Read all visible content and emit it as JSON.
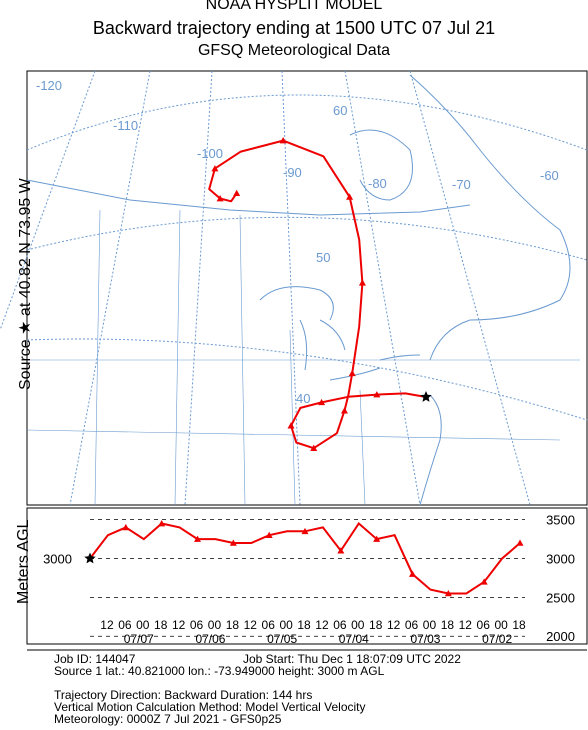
{
  "header": {
    "line1": "NOAA HYSPLIT MODEL",
    "line2": "Backward trajectory ending at 1500 UTC 07 Jul 21",
    "line3": "GFSQ Meteorological Data"
  },
  "map": {
    "source_label": "Source ★ at   40.82 N   73.95 W",
    "lon_labels": [
      "-120",
      "-110",
      "-100",
      "-90",
      "-80",
      "-70",
      "-60"
    ],
    "lat_labels": [
      "60",
      "50",
      "40"
    ]
  },
  "height_panel": {
    "axis_label": "Meters AGL",
    "source_height": "3000"
  },
  "chart_data": {
    "type": "line",
    "title": "Backward trajectory ending at 1500 UTC 07 Jul 21",
    "ylabel": "Meters AGL",
    "yticks": [
      2000,
      2500,
      3000,
      3500
    ],
    "ylim": [
      1900,
      3650
    ],
    "x_hour_ticks": [
      "12",
      "06",
      "00",
      "18",
      "12",
      "06",
      "00",
      "18",
      "12",
      "06",
      "00",
      "18",
      "12",
      "06",
      "00",
      "18",
      "12",
      "06",
      "00",
      "18",
      "12",
      "06",
      "00",
      "18"
    ],
    "x_date_labels": [
      "07/07",
      "07/06",
      "07/05",
      "07/04",
      "07/03",
      "07/02"
    ],
    "x_hours_back_range": [
      0,
      144
    ],
    "series": [
      {
        "color": "#ee0000",
        "hours_back": [
          0,
          6,
          12,
          18,
          24,
          30,
          36,
          42,
          48,
          54,
          60,
          66,
          72,
          78,
          84,
          90,
          96,
          102,
          108,
          114,
          120,
          126,
          132,
          138,
          144
        ],
        "height_m": [
          3000,
          3300,
          3400,
          3250,
          3450,
          3400,
          3250,
          3250,
          3200,
          3200,
          3300,
          3350,
          3350,
          3400,
          3100,
          3450,
          3250,
          3300,
          2800,
          2600,
          2550,
          2550,
          2700,
          3000,
          3200
        ]
      }
    ],
    "trajectory_path": {
      "latitude": [
        40.82,
        41.1,
        41.1,
        41.1,
        40.9,
        40.7,
        39.5,
        38.2,
        37.6,
        38.5,
        40.1,
        41.2,
        42.8,
        46.2,
        49.4,
        52.6,
        55.8,
        59.0,
        60.6,
        60.4,
        59.6,
        58.2,
        57.3,
        56.9,
        57.4
      ],
      "longitude": [
        -73.95,
        -76.2,
        -79.3,
        -82.4,
        -85.3,
        -87.6,
        -88.6,
        -88.0,
        -86.1,
        -83.6,
        -82.8,
        -82.4,
        -82.0,
        -81.3,
        -81.0,
        -81.4,
        -82.5,
        -85.4,
        -89.8,
        -94.4,
        -97.2,
        -97.8,
        -96.6,
        -95.4,
        -94.8
      ]
    }
  },
  "info": {
    "job_id": "Job ID: 144047",
    "job_start": "Job Start: Thu Dec  1 18:07:09 UTC 2022",
    "source1": "Source 1      lat.: 40.821000      lon.: -73.949000      height: 3000 m AGL",
    "traj_dir": "Trajectory Direction: Backward      Duration: 144 hrs",
    "vert": "Vertical Motion Calculation Method:        Model Vertical Velocity",
    "met": "Meteorology: 0000Z  7 Jul 2021 - GFS0p25"
  }
}
